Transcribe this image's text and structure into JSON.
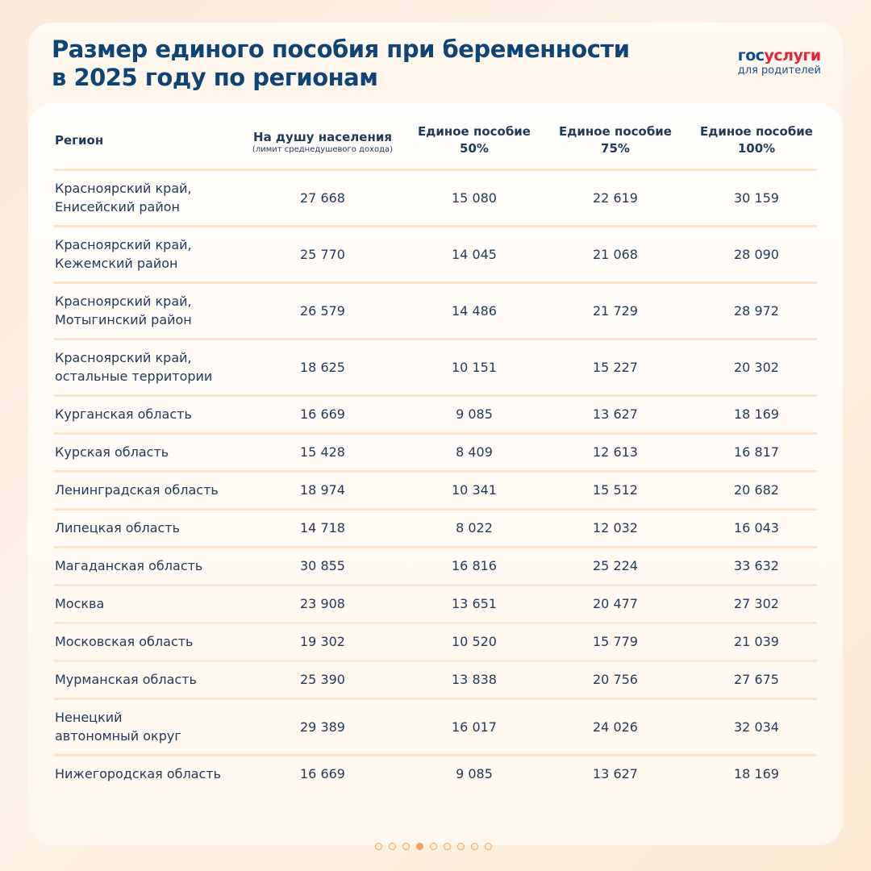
{
  "header": {
    "title": [
      "Размер единого пособия при беременности",
      "в 2025 году по регионам"
    ],
    "logo": {
      "brand": [
        "гос",
        "услуги"
      ],
      "subtitle": "для родителей"
    }
  },
  "table": {
    "columns": [
      {
        "lines": [
          "Регион"
        ]
      },
      {
        "lines": [
          "На душу населения"
        ],
        "note": "(лимит среднедушевого дохода)"
      },
      {
        "lines": [
          "Единое пособие",
          "50%"
        ]
      },
      {
        "lines": [
          "Единое пособие",
          "75%"
        ]
      },
      {
        "lines": [
          "Единое пособие",
          "100%"
        ]
      }
    ],
    "rows": [
      [
        [
          "Красноярский край,",
          "Енисейский район"
        ],
        "27 668",
        "15 080",
        "22 619",
        "30 159"
      ],
      [
        [
          "Красноярский край,",
          "Кежемский район"
        ],
        "25 770",
        "14 045",
        "21 068",
        "28 090"
      ],
      [
        [
          "Красноярский край,",
          "Мотыгинский район"
        ],
        "26 579",
        "14 486",
        "21 729",
        "28 972"
      ],
      [
        [
          "Красноярский край,",
          "остальные территории"
        ],
        "18 625",
        "10 151",
        "15 227",
        "20 302"
      ],
      [
        [
          "Курганская область"
        ],
        "16 669",
        "9 085",
        "13 627",
        "18 169"
      ],
      [
        [
          "Курская область"
        ],
        "15 428",
        "8 409",
        "12 613",
        "16 817"
      ],
      [
        [
          "Ленинградская область"
        ],
        "18 974",
        "10 341",
        "15 512",
        "20 682"
      ],
      [
        [
          "Липецкая область"
        ],
        "14 718",
        "8 022",
        "12 032",
        "16 043"
      ],
      [
        [
          "Магаданская область"
        ],
        "30 855",
        "16 816",
        "25 224",
        "33 632"
      ],
      [
        [
          "Москва"
        ],
        "23 908",
        "13 651",
        "20 477",
        "27 302"
      ],
      [
        [
          "Московская область"
        ],
        "19 302",
        "10 520",
        "15 779",
        "21 039"
      ],
      [
        [
          "Мурманская область"
        ],
        "25 390",
        "13 838",
        "20 756",
        "27 675"
      ],
      [
        [
          "Ненецкий",
          "автономный округ"
        ],
        "29 389",
        "16 017",
        "24 026",
        "32 034"
      ],
      [
        [
          "Нижегородская область"
        ],
        "16 669",
        "9 085",
        "13 627",
        "18 169"
      ]
    ]
  }
}
